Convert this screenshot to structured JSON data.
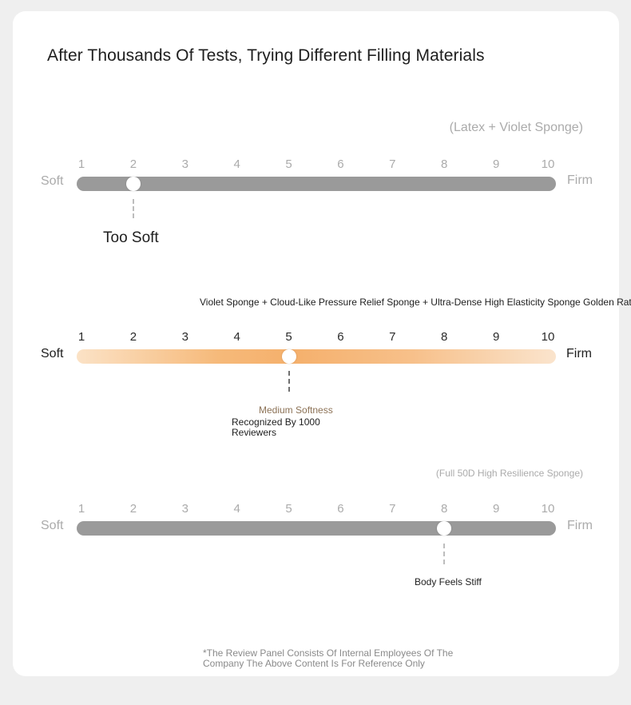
{
  "title": "After Thousands Of Tests, Trying Different Filling Materials",
  "scale": {
    "ticks": [
      "1",
      "2",
      "3",
      "4",
      "5",
      "6",
      "7",
      "8",
      "9",
      "10"
    ],
    "soft_label": "Soft",
    "firm_label": "Firm"
  },
  "rows": [
    {
      "caption": "(Latex + Violet Sponge)",
      "value": 2,
      "verdict": "Too Soft",
      "style": "grey"
    },
    {
      "caption": "Violet Sponge + Cloud-Like Pressure Relief Sponge + Ultra-Dense High Elasticity Sponge Golden Ratio",
      "value": 5,
      "verdict": "Medium Softness",
      "verdict_sub": "Recognized By 1000 Reviewers",
      "style": "peach"
    },
    {
      "caption": "(Full 50D High Resilience Sponge)",
      "value": 8,
      "verdict": "Body Feels Stiff",
      "style": "grey"
    }
  ],
  "footnote_line1": "*The Review Panel Consists Of Internal Employees Of The",
  "footnote_line2": "Company The Above Content Is For Reference Only",
  "colors": {
    "grey_track": "#9a9a9a",
    "peach_track": "#f5b06c",
    "muted_text": "#ababab",
    "brown_text": "#8c7256"
  }
}
